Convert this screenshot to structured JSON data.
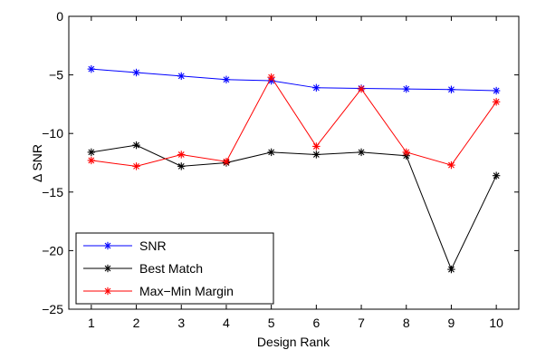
{
  "chart_data": {
    "type": "line",
    "title": "",
    "xlabel": "Design Rank",
    "ylabel": "Δ SNR",
    "xlim": [
      0.5,
      10.5
    ],
    "ylim": [
      -25,
      0
    ],
    "x": [
      1,
      2,
      3,
      4,
      5,
      6,
      7,
      8,
      9,
      10
    ],
    "xticks": [
      1,
      2,
      3,
      4,
      5,
      6,
      7,
      8,
      9,
      10
    ],
    "yticks": [
      0,
      -5,
      -10,
      -15,
      -20,
      -25
    ],
    "grid": false,
    "legend_position": "bottom-left",
    "marker": "asterisk",
    "series": [
      {
        "name": "SNR",
        "color": "#0000ff",
        "values": [
          -4.5,
          -4.8,
          -5.1,
          -5.4,
          -5.5,
          -6.1,
          -6.15,
          -6.2,
          -6.25,
          -6.35
        ]
      },
      {
        "name": "Best Match",
        "color": "#000000",
        "values": [
          -11.6,
          -11.0,
          -12.8,
          -12.5,
          -11.6,
          -11.8,
          -11.6,
          -11.9,
          -21.6,
          -13.6
        ]
      },
      {
        "name": "Max−Min Margin",
        "color": "#ff0000",
        "values": [
          -12.3,
          -12.8,
          -11.8,
          -12.4,
          -5.2,
          -11.1,
          -6.2,
          -11.6,
          -12.7,
          -7.3
        ]
      }
    ]
  }
}
